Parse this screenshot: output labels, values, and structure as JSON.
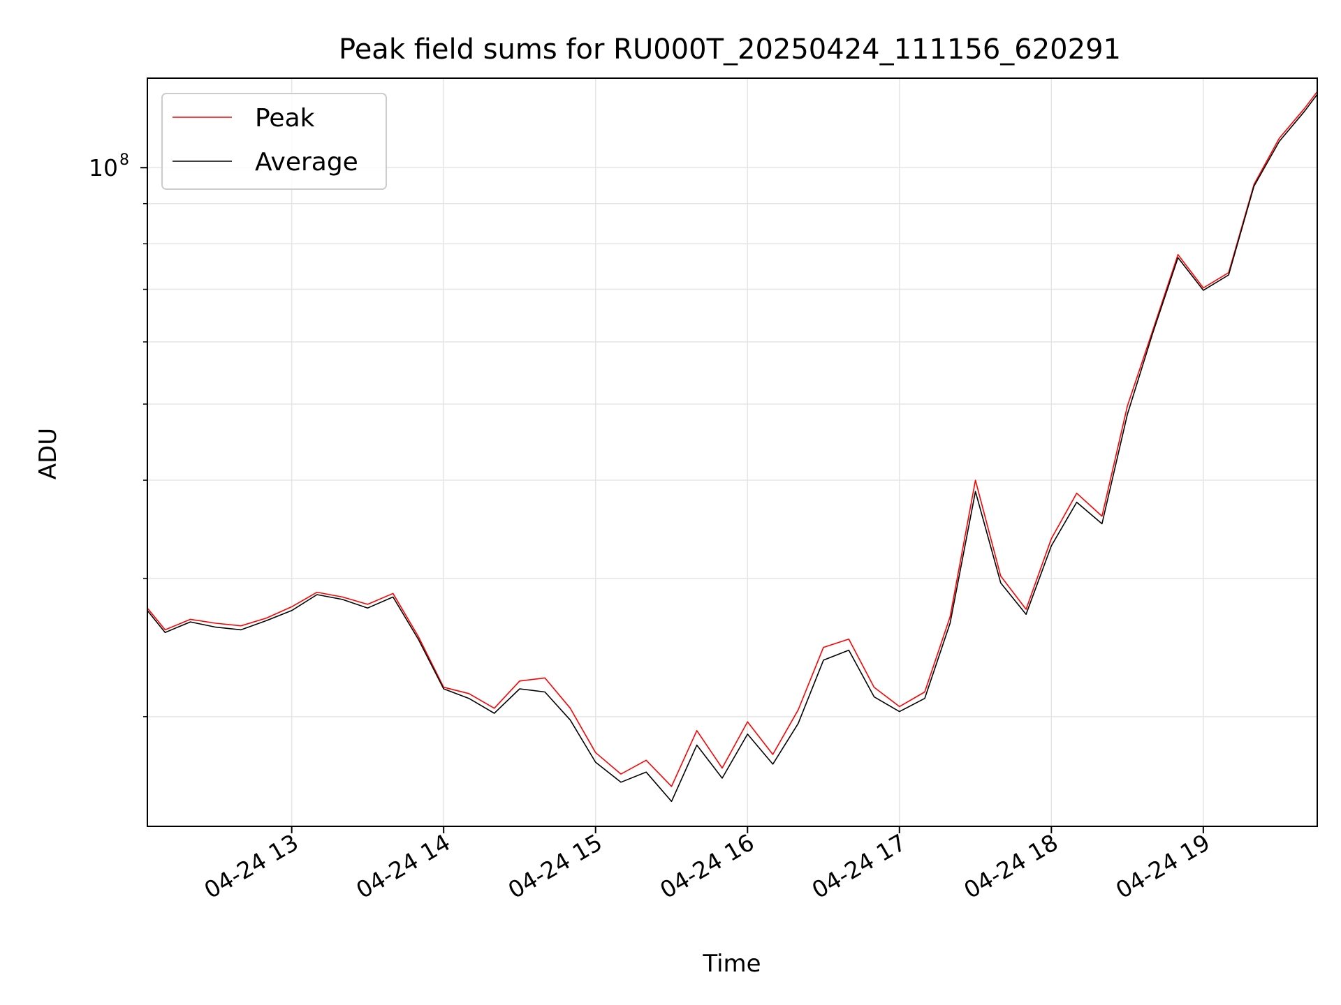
{
  "chart_data": {
    "type": "line",
    "title": "Peak field sums for RU000T_20250424_111156_620291",
    "xlabel": "Time",
    "ylabel": "ADU",
    "yscale": "log",
    "ylim": [
      14500000,
      130000000
    ],
    "xlim": [
      "2025-04-24 12:03",
      "2025-04-24 19:45"
    ],
    "x_ticks": [
      {
        "t": "2025-04-24 13:00",
        "label": "04-24 13"
      },
      {
        "t": "2025-04-24 14:00",
        "label": "04-24 14"
      },
      {
        "t": "2025-04-24 15:00",
        "label": "04-24 15"
      },
      {
        "t": "2025-04-24 16:00",
        "label": "04-24 16"
      },
      {
        "t": "2025-04-24 17:00",
        "label": "04-24 17"
      },
      {
        "t": "2025-04-24 18:00",
        "label": "04-24 18"
      },
      {
        "t": "2025-04-24 19:00",
        "label": "04-24 19"
      }
    ],
    "y_major_tick": {
      "value": 100000000,
      "label_base": "10",
      "label_exp": "8"
    },
    "y_minor_ticks": [
      20000000,
      30000000,
      40000000,
      50000000,
      60000000,
      70000000,
      80000000,
      90000000
    ],
    "grid": true,
    "legend": "upper left",
    "colors": {
      "peak": "#ff0000",
      "average": "#000000"
    },
    "series": [
      {
        "name": "Peak",
        "color": "#ff0000",
        "x": [
          "2025-04-24 12:03",
          "2025-04-24 12:10",
          "2025-04-24 12:20",
          "2025-04-24 12:30",
          "2025-04-24 12:40",
          "2025-04-24 12:50",
          "2025-04-24 13:00",
          "2025-04-24 13:10",
          "2025-04-24 13:20",
          "2025-04-24 13:30",
          "2025-04-24 13:40",
          "2025-04-24 13:50",
          "2025-04-24 14:00",
          "2025-04-24 14:10",
          "2025-04-24 14:20",
          "2025-04-24 14:30",
          "2025-04-24 14:40",
          "2025-04-24 14:50",
          "2025-04-24 15:00",
          "2025-04-24 15:10",
          "2025-04-24 15:20",
          "2025-04-24 15:30",
          "2025-04-24 15:40",
          "2025-04-24 15:50",
          "2025-04-24 16:00",
          "2025-04-24 16:10",
          "2025-04-24 16:20",
          "2025-04-24 16:30",
          "2025-04-24 16:40",
          "2025-04-24 16:50",
          "2025-04-24 17:00",
          "2025-04-24 17:10",
          "2025-04-24 17:20",
          "2025-04-24 17:30",
          "2025-04-24 17:40",
          "2025-04-24 17:50",
          "2025-04-24 18:00",
          "2025-04-24 18:10",
          "2025-04-24 18:20",
          "2025-04-24 18:30",
          "2025-04-24 18:40",
          "2025-04-24 18:50",
          "2025-04-24 19:00",
          "2025-04-24 19:10",
          "2025-04-24 19:20",
          "2025-04-24 19:30",
          "2025-04-24 19:40",
          "2025-04-24 19:45"
        ],
        "y": [
          27500000,
          25800000,
          26600000,
          26300000,
          26100000,
          26700000,
          27600000,
          28800000,
          28400000,
          27800000,
          28700000,
          25300000,
          21800000,
          21400000,
          20500000,
          22200000,
          22400000,
          20500000,
          18000000,
          16900000,
          17600000,
          16300000,
          19200000,
          17200000,
          19700000,
          17900000,
          20400000,
          24500000,
          25100000,
          21800000,
          20600000,
          21500000,
          26800000,
          40000000,
          30200000,
          27400000,
          33700000,
          38500000,
          36000000,
          49700000,
          62000000,
          77500000,
          70300000,
          73500000,
          95200000,
          109000000,
          119000000,
          125000000
        ]
      },
      {
        "name": "Average",
        "color": "#000000",
        "x": [
          "2025-04-24 12:03",
          "2025-04-24 12:10",
          "2025-04-24 12:20",
          "2025-04-24 12:30",
          "2025-04-24 12:40",
          "2025-04-24 12:50",
          "2025-04-24 13:00",
          "2025-04-24 13:10",
          "2025-04-24 13:20",
          "2025-04-24 13:30",
          "2025-04-24 13:40",
          "2025-04-24 13:50",
          "2025-04-24 14:00",
          "2025-04-24 14:10",
          "2025-04-24 14:20",
          "2025-04-24 14:30",
          "2025-04-24 14:40",
          "2025-04-24 14:50",
          "2025-04-24 15:00",
          "2025-04-24 15:10",
          "2025-04-24 15:20",
          "2025-04-24 15:30",
          "2025-04-24 15:40",
          "2025-04-24 15:50",
          "2025-04-24 16:00",
          "2025-04-24 16:10",
          "2025-04-24 16:20",
          "2025-04-24 16:30",
          "2025-04-24 16:40",
          "2025-04-24 16:50",
          "2025-04-24 17:00",
          "2025-04-24 17:10",
          "2025-04-24 17:20",
          "2025-04-24 17:30",
          "2025-04-24 17:40",
          "2025-04-24 17:50",
          "2025-04-24 18:00",
          "2025-04-24 18:10",
          "2025-04-24 18:20",
          "2025-04-24 18:30",
          "2025-04-24 18:40",
          "2025-04-24 18:50",
          "2025-04-24 19:00",
          "2025-04-24 19:10",
          "2025-04-24 19:20",
          "2025-04-24 19:30",
          "2025-04-24 19:40",
          "2025-04-24 19:45"
        ],
        "y": [
          27300000,
          25600000,
          26400000,
          26000000,
          25800000,
          26500000,
          27300000,
          28600000,
          28200000,
          27500000,
          28400000,
          25100000,
          21700000,
          21100000,
          20200000,
          21700000,
          21500000,
          19800000,
          17500000,
          16500000,
          17000000,
          15600000,
          18400000,
          16700000,
          19000000,
          17400000,
          19600000,
          23600000,
          24300000,
          21200000,
          20300000,
          21100000,
          26300000,
          38700000,
          29600000,
          27000000,
          33000000,
          37500000,
          35200000,
          48500000,
          61500000,
          76800000,
          69800000,
          73000000,
          94700000,
          108000000,
          118000000,
          124000000
        ]
      }
    ]
  }
}
